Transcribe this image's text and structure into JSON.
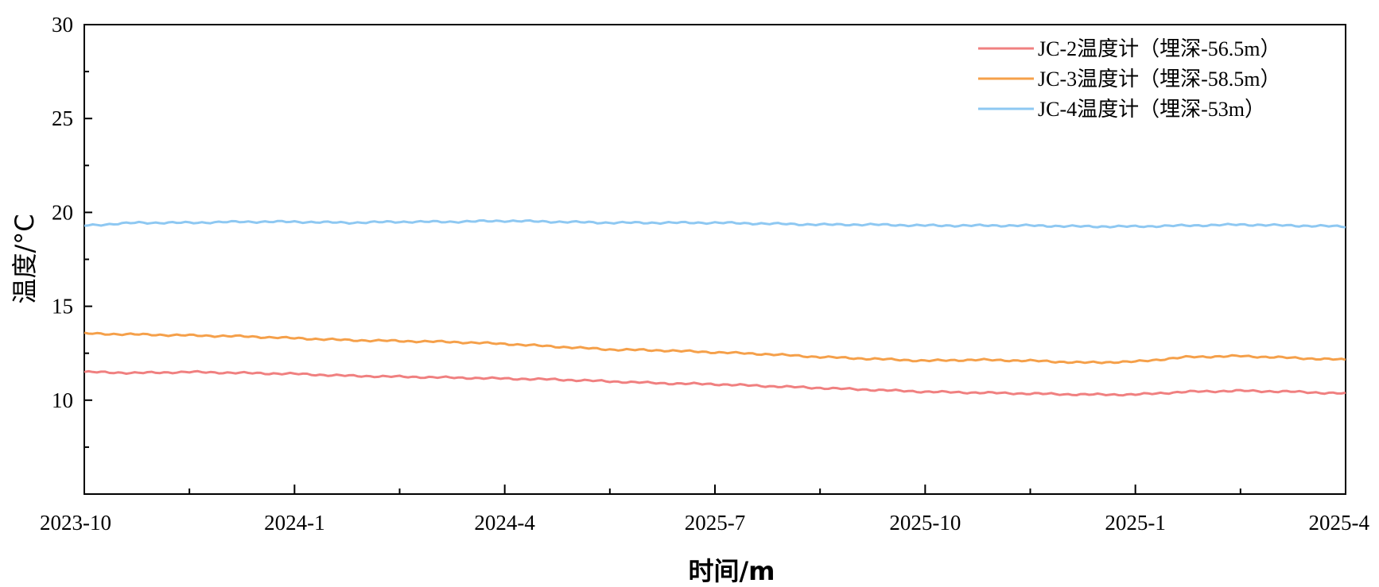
{
  "chart_data": {
    "type": "line",
    "xlabel": "时间/m",
    "ylabel": "温度/°C",
    "ylim": [
      5,
      30
    ],
    "yticks": [
      10,
      15,
      20,
      25,
      30
    ],
    "xticks": [
      "2023-10",
      "2024-1",
      "2024-4",
      "2025-7",
      "2025-10",
      "2025-1",
      "2025-4"
    ],
    "xlim": [
      0,
      6
    ],
    "legend_position": "top-right",
    "grid": false,
    "series": [
      {
        "name": "JC-2温度计（埋深-56.5m）",
        "color": "#f08080",
        "x": [
          0,
          0.25,
          0.5,
          0.75,
          1,
          1.25,
          1.5,
          1.75,
          2,
          2.25,
          2.5,
          2.75,
          3,
          3.25,
          3.5,
          3.75,
          4,
          4.25,
          4.5,
          4.75,
          5,
          5.25,
          5.5,
          5.75,
          6
        ],
        "values": [
          11.5,
          11.45,
          11.5,
          11.45,
          11.4,
          11.3,
          11.25,
          11.2,
          11.15,
          11.1,
          11.0,
          10.9,
          10.85,
          10.75,
          10.65,
          10.55,
          10.45,
          10.4,
          10.35,
          10.3,
          10.3,
          10.45,
          10.5,
          10.45,
          10.35
        ]
      },
      {
        "name": "JC-3温度计（埋深-58.5m）",
        "color": "#f5a04a",
        "x": [
          0,
          0.25,
          0.5,
          0.75,
          1,
          1.25,
          1.5,
          1.75,
          2,
          2.25,
          2.5,
          2.75,
          3,
          3.25,
          3.5,
          3.75,
          4,
          4.25,
          4.5,
          4.75,
          5,
          5.25,
          5.5,
          5.75,
          6
        ],
        "values": [
          13.55,
          13.5,
          13.45,
          13.4,
          13.3,
          13.2,
          13.15,
          13.1,
          13.0,
          12.85,
          12.7,
          12.65,
          12.55,
          12.45,
          12.3,
          12.2,
          12.1,
          12.15,
          12.1,
          12.0,
          12.05,
          12.3,
          12.35,
          12.25,
          12.15
        ]
      },
      {
        "name": "JC-4温度计（埋深-53m）",
        "color": "#8ec8f2",
        "x": [
          0,
          0.25,
          0.5,
          0.75,
          1,
          1.25,
          1.5,
          1.75,
          2,
          2.25,
          2.5,
          2.75,
          3,
          3.25,
          3.5,
          3.75,
          4,
          4.25,
          4.5,
          4.75,
          5,
          5.25,
          5.5,
          5.75,
          6
        ],
        "values": [
          19.3,
          19.45,
          19.45,
          19.5,
          19.5,
          19.45,
          19.5,
          19.5,
          19.55,
          19.5,
          19.45,
          19.45,
          19.45,
          19.4,
          19.35,
          19.35,
          19.3,
          19.3,
          19.3,
          19.25,
          19.25,
          19.3,
          19.35,
          19.3,
          19.25
        ]
      }
    ]
  }
}
